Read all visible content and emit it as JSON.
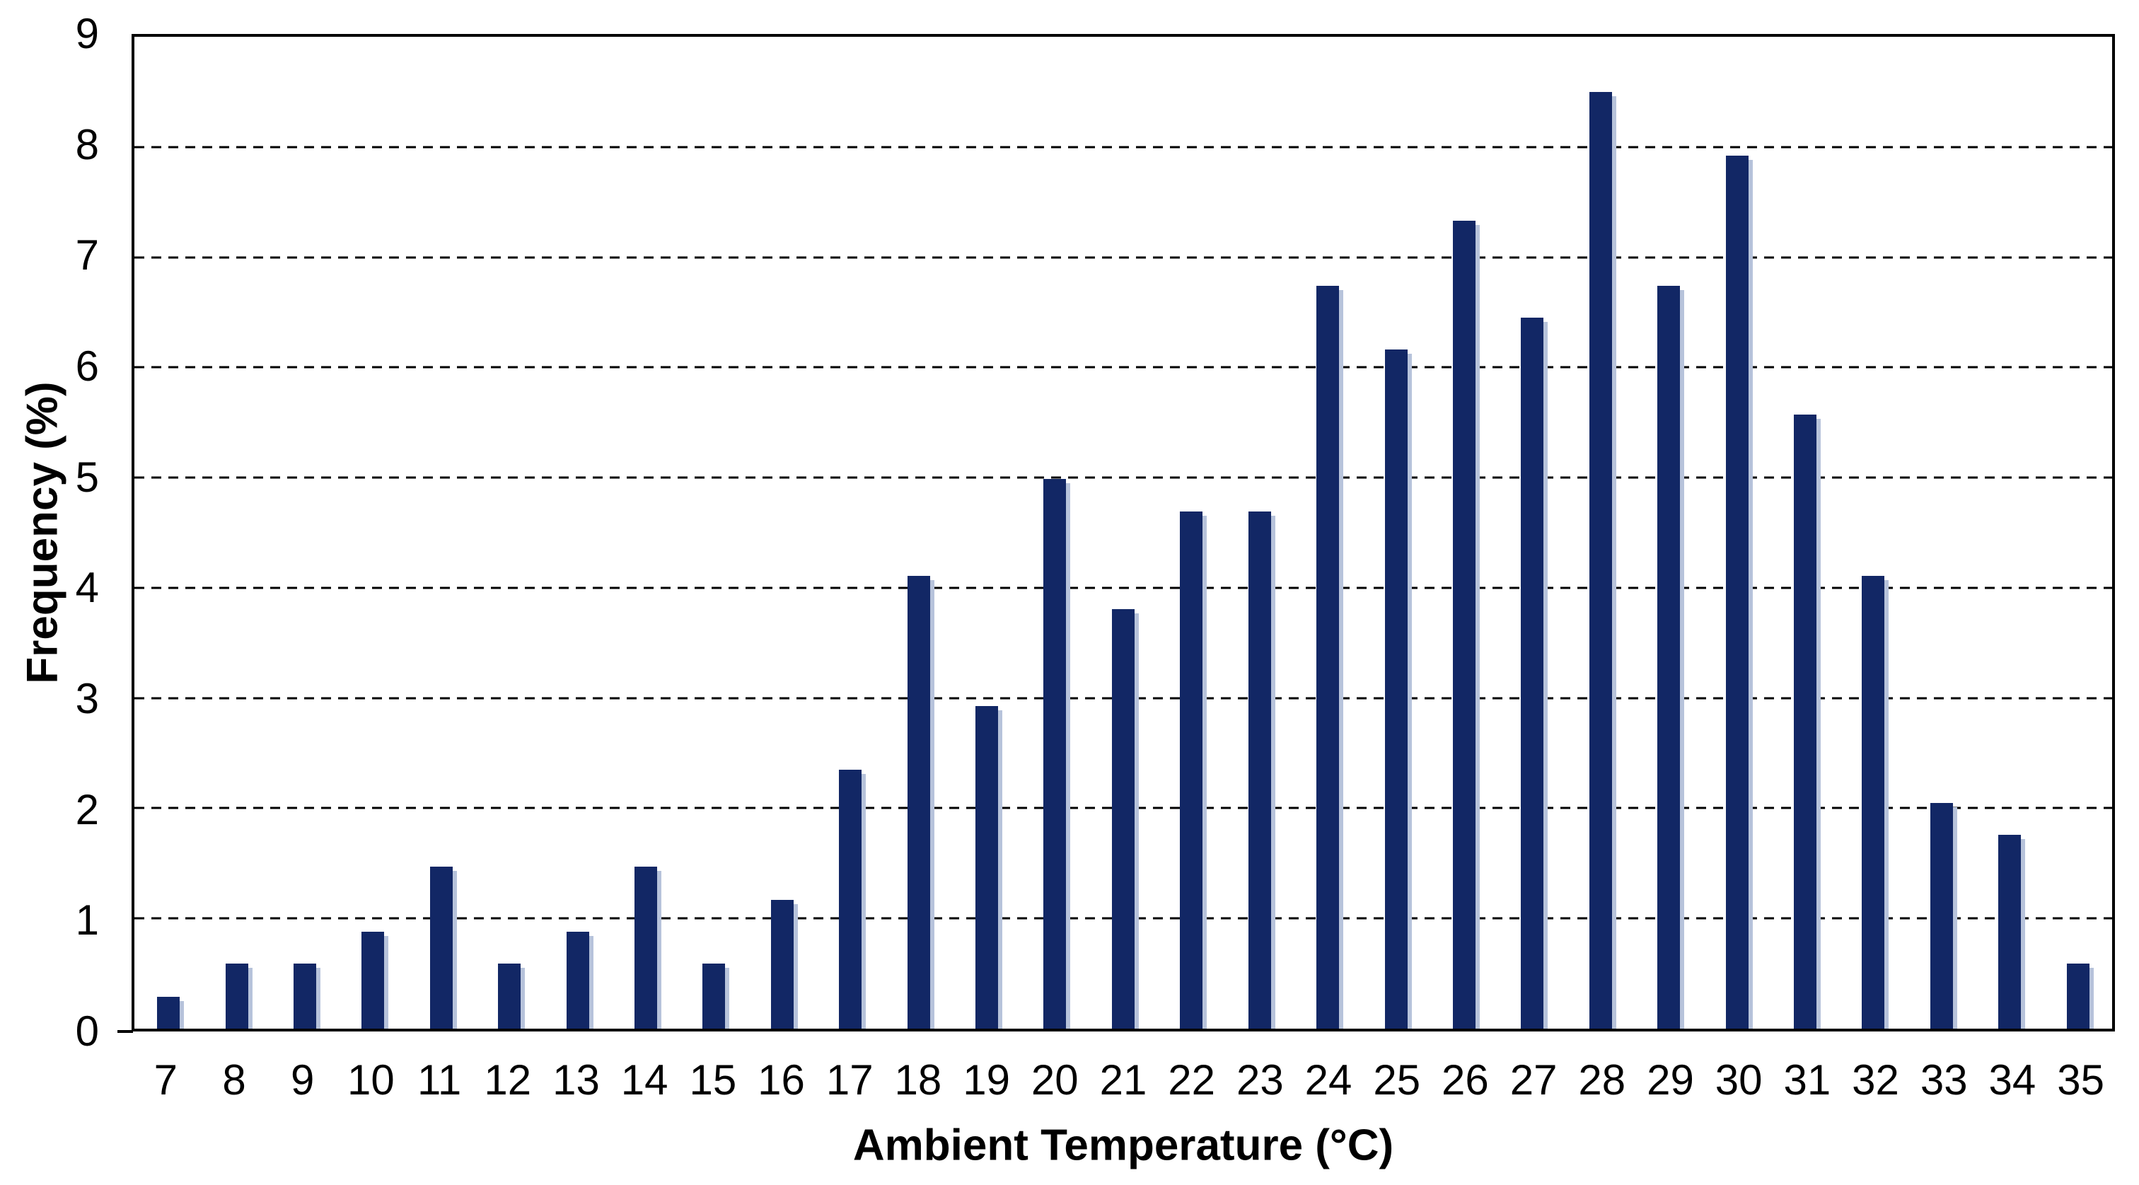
{
  "chart_data": {
    "type": "bar",
    "title": "",
    "xlabel": "Ambient Temperature (°C)",
    "ylabel": "Frequency (%)",
    "categories": [
      7,
      8,
      9,
      10,
      11,
      12,
      13,
      14,
      15,
      16,
      17,
      18,
      19,
      20,
      21,
      22,
      23,
      24,
      25,
      26,
      27,
      28,
      29,
      30,
      31,
      32,
      33,
      34,
      35
    ],
    "values": [
      0.29,
      0.59,
      0.59,
      0.88,
      1.47,
      0.59,
      0.88,
      1.47,
      0.59,
      1.17,
      2.35,
      4.11,
      2.93,
      4.99,
      3.81,
      4.69,
      4.69,
      6.74,
      6.16,
      7.33,
      6.45,
      8.5,
      6.74,
      7.92,
      5.57,
      4.11,
      2.05,
      1.76,
      0.59
    ],
    "ylim": [
      0,
      9
    ],
    "yticks": [
      0,
      1,
      2,
      3,
      4,
      5,
      6,
      7,
      8,
      9
    ],
    "grid": "horizontal-dashed",
    "legend": "none",
    "bar_color": "#122765",
    "bar_shadow_color": "#b7c3db",
    "gridline_color": "#000000",
    "axis_border_color": "#000000",
    "text_color": "#000000"
  }
}
